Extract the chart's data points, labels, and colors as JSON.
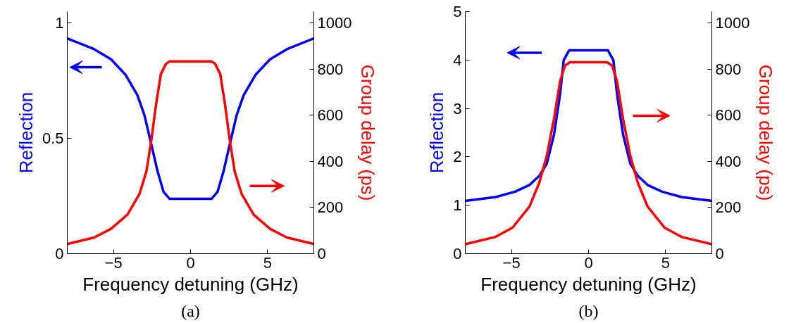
{
  "chart_data": [
    {
      "type": "line",
      "xlabel": "Frequency detuning (GHz)",
      "ylabel": "Reflection",
      "y2label": "Group delay (ps)",
      "annotations": [
        "(a)"
      ],
      "xlim": [
        -8,
        8
      ],
      "xticks": [
        -5,
        0,
        5
      ],
      "ylim": [
        0,
        1.05
      ],
      "yticks": [
        0,
        0.5,
        1
      ],
      "y2lim": [
        0,
        1050
      ],
      "y2ticks": [
        0,
        200,
        400,
        600,
        800,
        1000
      ],
      "grid": false,
      "marker": "none",
      "line_style": "solid",
      "series": [
        {
          "color": "#0000ff",
          "x": [
            -8,
            -6.25,
            -5.16,
            -4.23,
            -3.45,
            -2.99,
            -2.52,
            -2.14,
            -1.75,
            -1.36,
            1.36,
            1.75,
            2.14,
            2.52,
            2.99,
            3.45,
            4.23,
            5.16,
            6.25,
            8
          ],
          "values": [
            0.934,
            0.887,
            0.843,
            0.777,
            0.688,
            0.6,
            0.467,
            0.357,
            0.268,
            0.238,
            0.238,
            0.268,
            0.357,
            0.467,
            0.6,
            0.688,
            0.777,
            0.843,
            0.887,
            0.934
          ]
        },
        {
          "color": "#ff0000",
          "axis": "y2",
          "x": [
            -8,
            -6.25,
            -5.16,
            -4.1,
            -3.32,
            -2.86,
            -2.55,
            -2.24,
            -1.93,
            -1.6,
            -1.36,
            1.36,
            1.6,
            1.93,
            2.24,
            2.55,
            2.86,
            3.32,
            4.1,
            5.16,
            6.25,
            8
          ],
          "values": [
            42,
            70,
            108,
            169,
            258,
            358,
            490,
            646,
            778,
            823,
            834,
            834,
            823,
            778,
            646,
            490,
            358,
            258,
            169,
            108,
            70,
            42
          ]
        }
      ]
    },
    {
      "type": "line",
      "xlabel": "Frequency detuning (GHz)",
      "ylabel": "Reflection",
      "y2label": "Group delay (ps)",
      "annotations": [
        "(b)"
      ],
      "xlim": [
        -8,
        8
      ],
      "xticks": [
        -5,
        0,
        5
      ],
      "ylim": [
        0,
        5
      ],
      "yticks": [
        0,
        1,
        2,
        3,
        4,
        5
      ],
      "y2lim": [
        0,
        1050
      ],
      "y2ticks": [
        0,
        200,
        400,
        600,
        800,
        1000
      ],
      "grid": false,
      "marker": "none",
      "line_style": "solid",
      "series": [
        {
          "color": "#0000ff",
          "x": [
            -8,
            -6.03,
            -4.77,
            -3.83,
            -3.19,
            -2.71,
            -2.24,
            -1.85,
            -1.61,
            -1.26,
            1.26,
            1.61,
            1.85,
            2.24,
            2.71,
            3.19,
            3.83,
            4.77,
            6.03,
            8
          ],
          "values": [
            1.09,
            1.17,
            1.28,
            1.42,
            1.61,
            1.86,
            2.46,
            3.29,
            4.0,
            4.2,
            4.2,
            4.0,
            3.29,
            2.46,
            1.86,
            1.61,
            1.42,
            1.28,
            1.17,
            1.09
          ]
        },
        {
          "color": "#ff0000",
          "axis": "y2",
          "x": [
            -8,
            -6.03,
            -4.93,
            -3.83,
            -3.19,
            -2.71,
            -2.24,
            -1.85,
            -1.53,
            -1.21,
            1.21,
            1.53,
            1.85,
            2.24,
            2.71,
            3.19,
            3.83,
            4.93,
            6.03,
            8
          ],
          "values": [
            41,
            73,
            113,
            205,
            309,
            424,
            585,
            747,
            816,
            830,
            830,
            816,
            747,
            585,
            424,
            309,
            205,
            113,
            73,
            41
          ]
        }
      ]
    }
  ]
}
